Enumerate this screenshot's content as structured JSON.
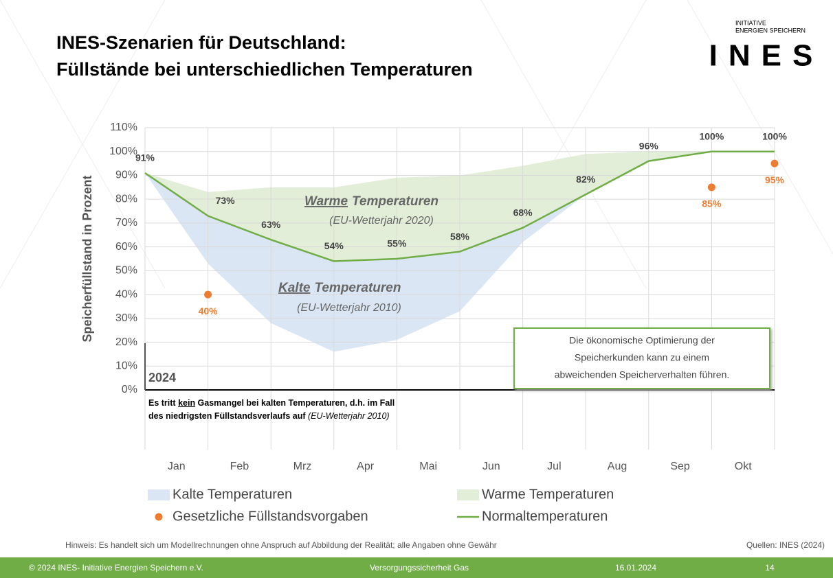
{
  "header": {
    "title_line1": "INES-Szenarien für Deutschland:",
    "title_line2": "Füllstände bei unterschiedlichen Temperaturen",
    "logo_small_1": "INITIATIVE",
    "logo_small_2": "ENERGIEN SPEICHERN",
    "logo": "INES"
  },
  "chart_data": {
    "type": "line",
    "ylabel": "Speicherfüllstand in Prozent",
    "categories": [
      "Jan",
      "Feb",
      "Mrz",
      "Apr",
      "Mai",
      "Jun",
      "Jul",
      "Aug",
      "Sep",
      "Okt",
      null
    ],
    "ylim": [
      0,
      110
    ],
    "yticks": [
      {
        "value": 0,
        "label": "0%"
      },
      {
        "value": 10,
        "label": "10%"
      },
      {
        "value": 20,
        "label": "20%"
      },
      {
        "value": 30,
        "label": "30%"
      },
      {
        "value": 40,
        "label": "40%"
      },
      {
        "value": 50,
        "label": "50%"
      },
      {
        "value": 60,
        "label": "60%"
      },
      {
        "value": 70,
        "label": "70%"
      },
      {
        "value": 80,
        "label": "80%"
      },
      {
        "value": 90,
        "label": "90%"
      },
      {
        "value": 100,
        "label": "100%"
      },
      {
        "value": 110,
        "label": "110%"
      }
    ],
    "grid": true,
    "series": [
      {
        "name": "Kalte Temperaturen",
        "kind": "area",
        "color": "#dae6f4",
        "values": [
          91,
          53,
          28,
          16,
          21,
          33,
          62,
          82,
          96,
          100,
          100
        ]
      },
      {
        "name": "Warme Temperaturen",
        "kind": "area",
        "color": "#e3eed8",
        "values": [
          91,
          83,
          85,
          85,
          89,
          90,
          94,
          99,
          100,
          100,
          100
        ]
      },
      {
        "name": "Gesetzliche Füllstandsvorgaben",
        "kind": "scatter",
        "color": "#ed7d31",
        "values": [
          null,
          40,
          null,
          null,
          null,
          null,
          null,
          null,
          null,
          85,
          95
        ],
        "value_labels": [
          null,
          "40%",
          null,
          null,
          null,
          null,
          null,
          null,
          null,
          "85%",
          "95%"
        ]
      },
      {
        "name": "Normaltemperaturen",
        "kind": "line",
        "color": "#70ad47",
        "values": [
          91,
          73,
          63,
          54,
          55,
          58,
          68,
          82,
          96,
          100,
          100
        ],
        "value_labels": [
          "91%",
          "73%",
          "63%",
          "54%",
          "55%",
          "58%",
          "68%",
          "82%",
          "96%",
          "100%",
          "100%"
        ]
      }
    ],
    "annotations": {
      "warm_u": "Warme",
      "warm": "Temperaturen",
      "warm_sub": "(EU-Wetterjahr 2020)",
      "cold_u": "Kalte",
      "cold": "Temperaturen",
      "cold_sub": "(EU-Wetterjahr 2010)",
      "year": "2024",
      "box": [
        "Die ökonomische Optimierung der",
        "Speicherkunden kann zu einem",
        "abweichenden Speicherverhalten führen."
      ],
      "note_a": "Es tritt ",
      "note_u": "kein",
      "note_b": " Gasmangel bei kalten Temperaturen, d.h. im Fall",
      "note_c": "des niedrigsten Füllstandsverlaufs auf ",
      "note_i": "(EU-Wetterjahr 2010)"
    }
  },
  "footer": {
    "hint": "Hinweis: Es handelt sich um Modellrechnungen ohne Anspruch auf Abbildung der Realität; alle Angaben ohne Gewähr",
    "sources": "Quellen: INES (2024)",
    "copyright": "© 2024 INES- Initiative Energien Speichern e.V.",
    "topic": "Versorgungssicherheit Gas",
    "date": "16.01.2024",
    "page": "14"
  }
}
